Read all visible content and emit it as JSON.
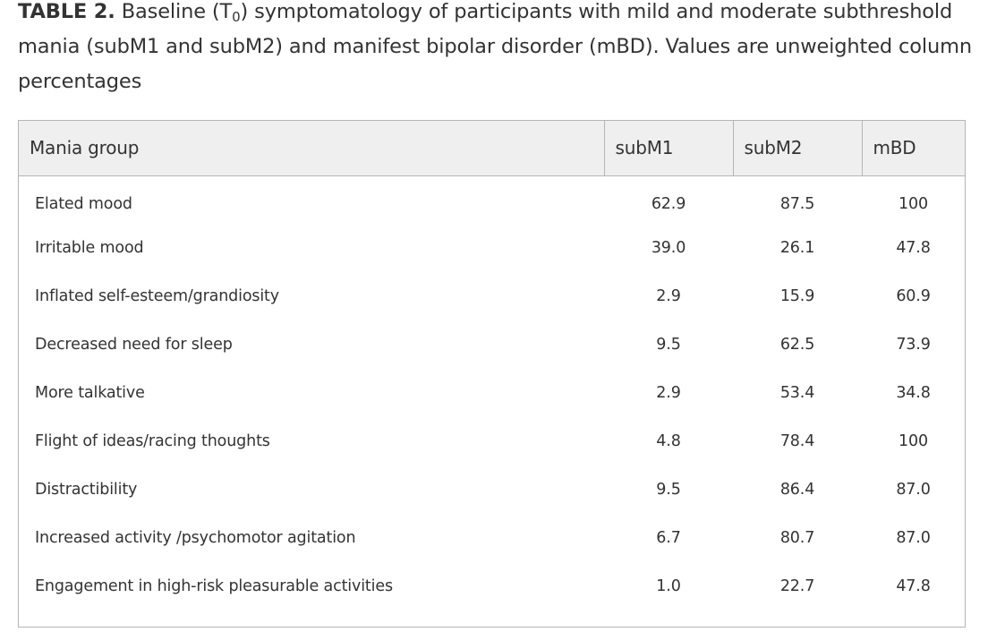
{
  "caption": {
    "label": "TABLE 2.",
    "text_before_sub": " Baseline (T",
    "sub": "0",
    "text_after_sub": ") symptomatology of participants with mild and moderate subthreshold mania (subM1 and subM2) and manifest bipolar disorder (mBD). Values are unweighted column percentages"
  },
  "table": {
    "headers": [
      "Mania group",
      "subM1",
      "subM2",
      "mBD"
    ],
    "rows": [
      {
        "label": "Elated mood",
        "subM1": "62.9",
        "subM2": "87.5",
        "mBD": "100"
      },
      {
        "label": "Irritable mood",
        "subM1": "39.0",
        "subM2": "26.1",
        "mBD": "47.8"
      },
      {
        "label": "Inflated self-esteem/grandiosity",
        "subM1": "2.9",
        "subM2": "15.9",
        "mBD": "60.9"
      },
      {
        "label": "Decreased need for sleep",
        "subM1": "9.5",
        "subM2": "62.5",
        "mBD": "73.9"
      },
      {
        "label": "More talkative",
        "subM1": "2.9",
        "subM2": "53.4",
        "mBD": "34.8"
      },
      {
        "label": "Flight of ideas/racing thoughts",
        "subM1": "4.8",
        "subM2": "78.4",
        "mBD": "100"
      },
      {
        "label": "Distractibility",
        "subM1": "9.5",
        "subM2": "86.4",
        "mBD": "87.0"
      },
      {
        "label": "Increased activity /psychomotor agitation",
        "subM1": "6.7",
        "subM2": "80.7",
        "mBD": "87.0"
      },
      {
        "label": "Engagement in high-risk pleasurable activities",
        "subM1": "1.0",
        "subM2": "22.7",
        "mBD": "47.8"
      }
    ]
  }
}
